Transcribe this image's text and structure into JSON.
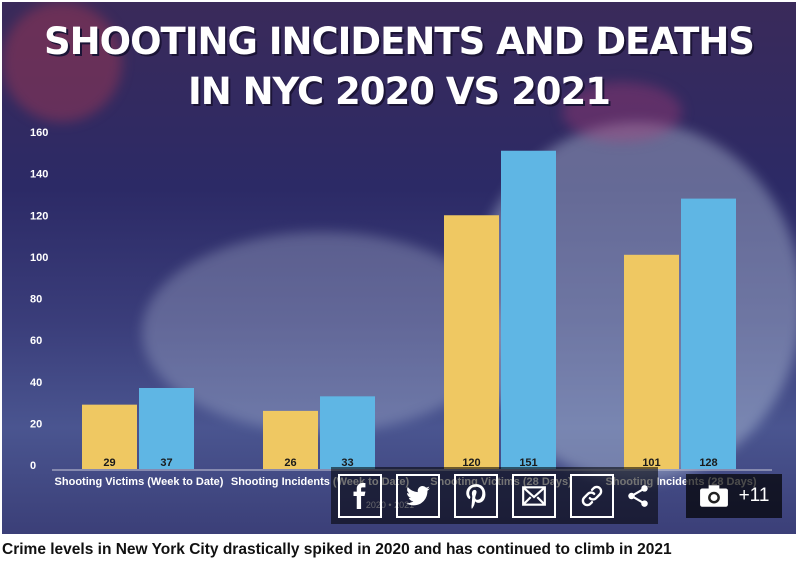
{
  "title_line1": "SHOOTING INCIDENTS AND DEATHS",
  "title_line2": "IN NYC 2020 VS 2021",
  "caption": "Crime levels in New York City drastically spiked in 2020 and has continued to climb in 2021",
  "gallery": {
    "icon": "camera-icon",
    "count": "+11"
  },
  "share_icons": [
    "facebook-icon",
    "twitter-icon",
    "pinterest-icon",
    "email-icon",
    "link-icon",
    "share-icon"
  ],
  "colors": {
    "series_2020": "#efc862",
    "series_2021": "#5fb6e4"
  },
  "chart_data": {
    "type": "bar",
    "categories": [
      "Shooting Victims (Week to Date)",
      "Shooting Incidents (Week to Date)",
      "Shooting Victims (28 Days)",
      "Shooting Incidents (28 Days)"
    ],
    "series": [
      {
        "values": [
          29,
          26,
          120,
          101
        ]
      },
      {
        "values": [
          37,
          33,
          151,
          128
        ]
      }
    ],
    "data_labels": [
      [
        "29",
        "26",
        "120",
        "101"
      ],
      [
        "37",
        "33",
        "151",
        "128"
      ]
    ],
    "yticks": [
      0,
      20,
      40,
      60,
      80,
      100,
      120,
      140,
      160
    ],
    "ylim": [
      0,
      160
    ],
    "axis_note": "2020 • 2021",
    "grid": false
  }
}
